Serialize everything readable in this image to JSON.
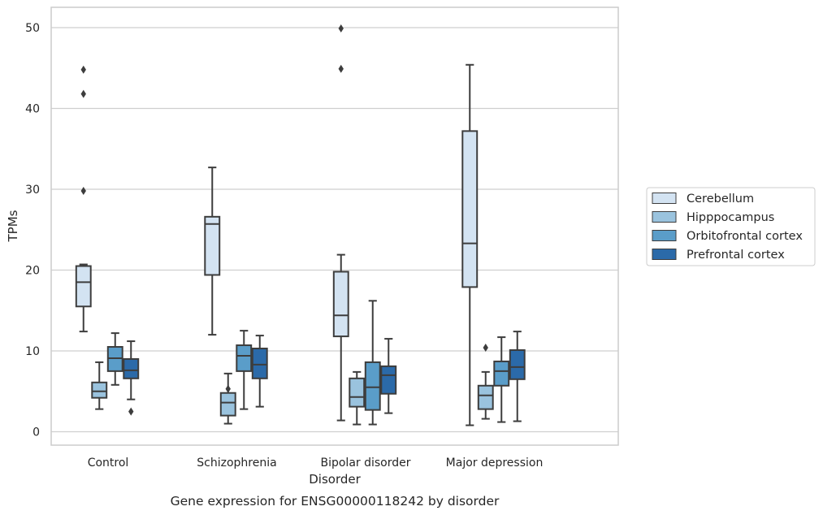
{
  "chart_data": {
    "type": "box",
    "caption": "Gene expression for ENSG00000118242 by disorder",
    "xlabel": "Disorder",
    "ylabel": "TPMs",
    "ylim": [
      -1.5,
      52.5
    ],
    "yticks": [
      0,
      10,
      20,
      30,
      40,
      50
    ],
    "grid": true,
    "legend_position": "right",
    "categories": [
      "Control",
      "Schizophrenia",
      "Bipolar disorder",
      "Major depression"
    ],
    "series": [
      {
        "name": "Cerebellum",
        "color": "#d3e3f2",
        "boxes": [
          {
            "whislo": 12.4,
            "q1": 15.5,
            "med": 18.5,
            "q3": 20.5,
            "whishi": 20.7,
            "fliers": [
              29.8,
              41.8,
              44.8
            ]
          },
          {
            "whislo": 12.0,
            "q1": 19.4,
            "med": 25.7,
            "q3": 26.6,
            "whishi": 32.7,
            "fliers": []
          },
          {
            "whislo": 1.4,
            "q1": 11.8,
            "med": 14.4,
            "q3": 19.8,
            "whishi": 21.9,
            "fliers": [
              44.9,
              49.9
            ]
          },
          {
            "whislo": 0.8,
            "q1": 17.9,
            "med": 23.3,
            "q3": 37.2,
            "whishi": 45.4,
            "fliers": []
          }
        ]
      },
      {
        "name": "Hipppocampus",
        "color": "#9ac3de",
        "boxes": [
          {
            "whislo": 2.8,
            "q1": 4.2,
            "med": 5.0,
            "q3": 6.1,
            "whishi": 8.6,
            "fliers": []
          },
          {
            "whislo": 1.0,
            "q1": 2.0,
            "med": 3.6,
            "q3": 4.8,
            "whishi": 7.2,
            "fliers": [
              5.3
            ]
          },
          {
            "whislo": 0.9,
            "q1": 3.1,
            "med": 4.3,
            "q3": 6.6,
            "whishi": 7.4,
            "fliers": []
          },
          {
            "whislo": 1.6,
            "q1": 2.8,
            "med": 4.5,
            "q3": 5.7,
            "whishi": 7.4,
            "fliers": [
              10.4
            ]
          }
        ]
      },
      {
        "name": "Orbitofrontal cortex",
        "color": "#5a9dc9",
        "boxes": [
          {
            "whislo": 5.8,
            "q1": 7.5,
            "med": 9.1,
            "q3": 10.5,
            "whishi": 12.2,
            "fliers": []
          },
          {
            "whislo": 2.8,
            "q1": 7.5,
            "med": 9.4,
            "q3": 10.7,
            "whishi": 12.5,
            "fliers": []
          },
          {
            "whislo": 0.9,
            "q1": 2.7,
            "med": 5.5,
            "q3": 8.6,
            "whishi": 16.2,
            "fliers": []
          },
          {
            "whislo": 1.2,
            "q1": 5.7,
            "med": 7.5,
            "q3": 8.7,
            "whishi": 11.7,
            "fliers": []
          }
        ]
      },
      {
        "name": "Prefrontal cortex",
        "color": "#2b6aa9",
        "boxes": [
          {
            "whislo": 4.0,
            "q1": 6.6,
            "med": 7.6,
            "q3": 9.0,
            "whishi": 11.2,
            "fliers": [
              2.5
            ]
          },
          {
            "whislo": 3.1,
            "q1": 6.6,
            "med": 8.3,
            "q3": 10.3,
            "whishi": 11.9,
            "fliers": []
          },
          {
            "whislo": 2.3,
            "q1": 4.7,
            "med": 7.0,
            "q3": 8.1,
            "whishi": 11.5,
            "fliers": []
          },
          {
            "whislo": 1.3,
            "q1": 6.5,
            "med": 8.0,
            "q3": 10.1,
            "whishi": 12.4,
            "fliers": []
          }
        ]
      }
    ]
  }
}
